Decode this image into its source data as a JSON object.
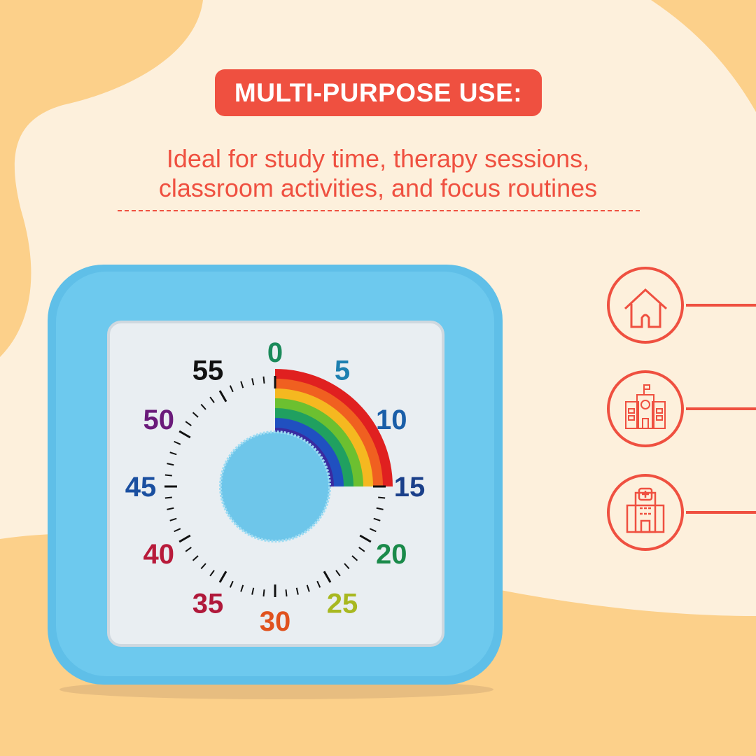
{
  "headline": "MULTI-PURPOSE USE:",
  "subtitle_lines": [
    "Ideal for study time, therapy sessions,",
    "classroom activities, and focus routines"
  ],
  "colors": {
    "accent": "#ef5040",
    "background": "#fdf0dc",
    "blob": "#fcd08a",
    "timer_body": "#5fbfe8"
  },
  "timer": {
    "set_minutes": 15,
    "dial_numbers": [
      {
        "label": "0",
        "color": "#1a8a5a"
      },
      {
        "label": "5",
        "color": "#1c7fb0"
      },
      {
        "label": "10",
        "color": "#1a5ea8"
      },
      {
        "label": "15",
        "color": "#1a3f8a"
      },
      {
        "label": "20",
        "color": "#1a8a4a"
      },
      {
        "label": "25",
        "color": "#a8b820"
      },
      {
        "label": "30",
        "color": "#e0521e"
      },
      {
        "label": "35",
        "color": "#b0183a"
      },
      {
        "label": "40",
        "color": "#b81a3a"
      },
      {
        "label": "45",
        "color": "#1a4fa0"
      },
      {
        "label": "50",
        "color": "#6a1a7a"
      },
      {
        "label": "55",
        "color": "#111111"
      }
    ]
  },
  "icons": [
    "home-icon",
    "school-icon",
    "hospital-icon"
  ]
}
